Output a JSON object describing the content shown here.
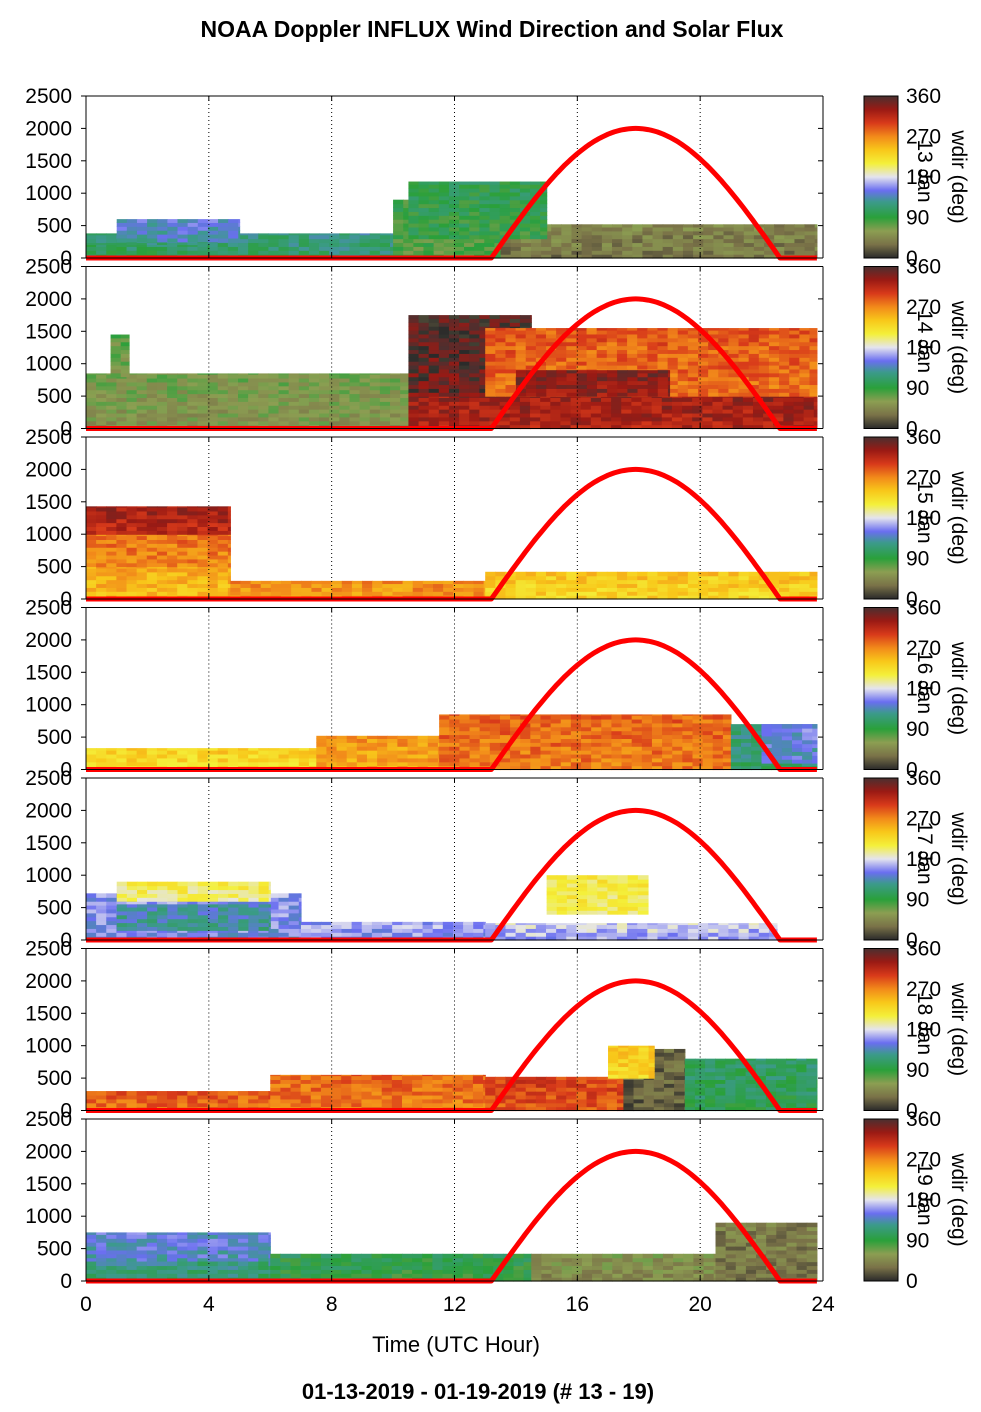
{
  "title": "NOAA Doppler INFLUX Wind Direction and Solar Flux",
  "footer": "01-13-2019 - 01-19-2019   (# 13 - 19)",
  "chart_data": {
    "type": "heatmap",
    "title": "NOAA Doppler INFLUX Wind Direction and Solar Flux",
    "xlabel": "Time (UTC Hour)",
    "xlim": [
      0,
      24
    ],
    "xticks": [
      "0",
      "4",
      "8",
      "12",
      "16",
      "20",
      "24"
    ],
    "ylim": [
      0,
      2500
    ],
    "yticks": [
      "0",
      "500",
      "1000",
      "1500",
      "2000",
      "2500"
    ],
    "colorbar": {
      "label": "wdir (deg)",
      "ticks": [
        "0",
        "90",
        "180",
        "270",
        "360"
      ],
      "colormap": [
        {
          "v": 0,
          "c": "#2a2a2a"
        },
        {
          "v": 30,
          "c": "#7a7248"
        },
        {
          "v": 60,
          "c": "#8c9e52"
        },
        {
          "v": 90,
          "c": "#2aa03a"
        },
        {
          "v": 125,
          "c": "#3c9a8c"
        },
        {
          "v": 150,
          "c": "#6a6ef0"
        },
        {
          "v": 180,
          "c": "#e4e4ee"
        },
        {
          "v": 210,
          "c": "#f4f03a"
        },
        {
          "v": 240,
          "c": "#f8c81a"
        },
        {
          "v": 270,
          "c": "#f28a1a"
        },
        {
          "v": 300,
          "c": "#d83a1a"
        },
        {
          "v": 330,
          "c": "#9a1a14"
        },
        {
          "v": 360,
          "c": "#4a3030"
        }
      ]
    },
    "solar_flux_curve": {
      "color": "#ff0000",
      "start_hour": 13.2,
      "end_hour": 22.6,
      "peak_hour": 17.9,
      "peak_value": 2000
    },
    "panels": [
      {
        "day_label": "13 Jan",
        "layers": [
          {
            "x0": 0,
            "x1": 10,
            "ybot": 0,
            "ytop": 380,
            "v": 110
          },
          {
            "x0": 1,
            "x1": 5,
            "ybot": 250,
            "ytop": 600,
            "v": 135
          },
          {
            "x0": 10,
            "x1": 13.5,
            "ybot": 0,
            "ytop": 900,
            "v": 80
          },
          {
            "x0": 13.5,
            "x1": 23.8,
            "ybot": 0,
            "ytop": 520,
            "v": 35
          },
          {
            "x0": 10.5,
            "x1": 15,
            "ybot": 300,
            "ytop": 1180,
            "v": 90
          },
          {
            "x0": 0,
            "x1": 4,
            "ybot": 0,
            "ytop": 200,
            "v": 100
          }
        ]
      },
      {
        "day_label": "14 Jan",
        "layers": [
          {
            "x0": 0,
            "x1": 10.5,
            "ybot": 0,
            "ytop": 850,
            "v": 55
          },
          {
            "x0": 0.8,
            "x1": 1.4,
            "ybot": 800,
            "ytop": 1450,
            "v": 65
          },
          {
            "x0": 10.5,
            "x1": 23.8,
            "ybot": 0,
            "ytop": 500,
            "v": 320
          },
          {
            "x0": 10.5,
            "x1": 14.5,
            "ybot": 500,
            "ytop": 1750,
            "v": 345
          },
          {
            "x0": 13,
            "x1": 23.8,
            "ybot": 500,
            "ytop": 1550,
            "v": 280
          },
          {
            "x0": 14,
            "x1": 19,
            "ybot": 500,
            "ytop": 900,
            "v": 330
          }
        ]
      },
      {
        "day_label": "15 Jan",
        "layers": [
          {
            "x0": 0,
            "x1": 4.7,
            "ybot": 0,
            "ytop": 500,
            "v": 245
          },
          {
            "x0": 0,
            "x1": 4.7,
            "ybot": 500,
            "ytop": 1000,
            "v": 270
          },
          {
            "x0": 0,
            "x1": 4.7,
            "ybot": 1000,
            "ytop": 1430,
            "v": 315
          },
          {
            "x0": 4.7,
            "x1": 13,
            "ybot": 0,
            "ytop": 280,
            "v": 260
          },
          {
            "x0": 13,
            "x1": 23.8,
            "ybot": 0,
            "ytop": 420,
            "v": 230
          }
        ]
      },
      {
        "day_label": "16 Jan",
        "layers": [
          {
            "x0": 0,
            "x1": 7.5,
            "ybot": 0,
            "ytop": 330,
            "v": 225
          },
          {
            "x0": 7.5,
            "x1": 11.5,
            "ybot": 0,
            "ytop": 520,
            "v": 255
          },
          {
            "x0": 11.5,
            "x1": 21,
            "ybot": 0,
            "ytop": 850,
            "v": 275
          },
          {
            "x0": 21,
            "x1": 23.8,
            "ybot": 0,
            "ytop": 700,
            "v": 110
          },
          {
            "x0": 22,
            "x1": 23.8,
            "ybot": 100,
            "ytop": 700,
            "v": 140
          }
        ]
      },
      {
        "day_label": "17 Jan",
        "layers": [
          {
            "x0": 0,
            "x1": 7,
            "ybot": 0,
            "ytop": 720,
            "v": 150
          },
          {
            "x0": 1,
            "x1": 6,
            "ybot": 600,
            "ytop": 900,
            "v": 200
          },
          {
            "x0": 1,
            "x1": 6,
            "ybot": 150,
            "ytop": 550,
            "v": 125
          },
          {
            "x0": 7,
            "x1": 13,
            "ybot": 0,
            "ytop": 280,
            "v": 155
          },
          {
            "x0": 13,
            "x1": 22.5,
            "ybot": 0,
            "ytop": 260,
            "v": 165
          },
          {
            "x0": 15,
            "x1": 18.3,
            "ybot": 400,
            "ytop": 1000,
            "v": 205
          }
        ]
      },
      {
        "day_label": "18 Jan",
        "layers": [
          {
            "x0": 0,
            "x1": 13,
            "ybot": 0,
            "ytop": 300,
            "v": 280
          },
          {
            "x0": 6,
            "x1": 13,
            "ybot": 0,
            "ytop": 550,
            "v": 275
          },
          {
            "x0": 13,
            "x1": 17.5,
            "ybot": 0,
            "ytop": 520,
            "v": 290
          },
          {
            "x0": 17.5,
            "x1": 19.5,
            "ybot": 0,
            "ytop": 950,
            "v": 20
          },
          {
            "x0": 17,
            "x1": 18.5,
            "ybot": 500,
            "ytop": 1000,
            "v": 230
          },
          {
            "x0": 19.5,
            "x1": 23.8,
            "ybot": 0,
            "ytop": 800,
            "v": 100
          }
        ]
      },
      {
        "day_label": "19 Jan",
        "layers": [
          {
            "x0": 0,
            "x1": 6,
            "ybot": 0,
            "ytop": 750,
            "v": 135
          },
          {
            "x0": 0,
            "x1": 6,
            "ybot": 0,
            "ytop": 300,
            "v": 110
          },
          {
            "x0": 6,
            "x1": 14.5,
            "ybot": 0,
            "ytop": 420,
            "v": 90
          },
          {
            "x0": 14.5,
            "x1": 20.5,
            "ybot": 0,
            "ytop": 420,
            "v": 45
          },
          {
            "x0": 20.5,
            "x1": 23.8,
            "ybot": 0,
            "ytop": 900,
            "v": 30
          }
        ]
      }
    ]
  }
}
